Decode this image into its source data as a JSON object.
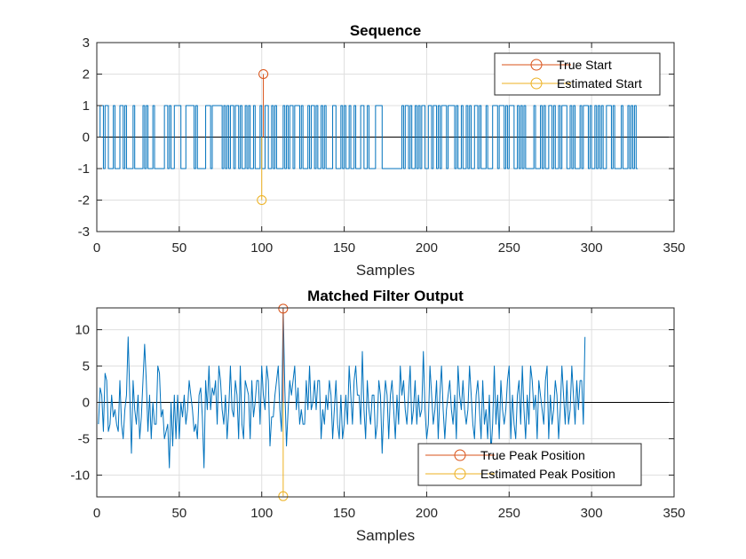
{
  "colors": {
    "sequence": "#0072BD",
    "true_marker": "#D95319",
    "estimated_marker": "#EDB120",
    "zero_line": "#000000",
    "grid": "#DFDFDF",
    "axes": "#262626"
  },
  "chart_data": [
    {
      "type": "line",
      "title": "Sequence",
      "xlabel": "Samples",
      "ylabel": "",
      "xlim": [
        0,
        350
      ],
      "ylim": [
        -3,
        3
      ],
      "xticks": [
        0,
        50,
        100,
        150,
        200,
        250,
        300,
        350
      ],
      "yticks": [
        -3,
        -2,
        -1,
        0,
        1,
        2,
        3
      ],
      "xtick_labels": [
        "0",
        "50",
        "100",
        "150",
        "200",
        "250",
        "300",
        "350"
      ],
      "ytick_labels": [
        "-3",
        "-2",
        "-1",
        "0",
        "1",
        "2",
        "3"
      ],
      "grid": true,
      "zero_line": true,
      "legend_position": "top-right",
      "series": [
        {
          "kind": "signal",
          "color": "#0072BD",
          "values": [
            0,
            1,
            1,
            -1,
            1,
            1,
            -1,
            -1,
            -1,
            1,
            -1,
            -1,
            -1,
            1,
            1,
            -1,
            1,
            -1,
            -1,
            -1,
            -1,
            1,
            -1,
            -1,
            -1,
            -1,
            -1,
            1,
            -1,
            1,
            -1,
            -1,
            -1,
            1,
            -1,
            -1,
            -1,
            -1,
            -1,
            -1,
            1,
            1,
            -1,
            1,
            -1,
            -1,
            1,
            1,
            1,
            1,
            -1,
            -1,
            -1,
            1,
            1,
            1,
            1,
            1,
            -1,
            1,
            -1,
            -1,
            -1,
            -1,
            -1,
            1,
            1,
            1,
            -1,
            1,
            1,
            1,
            1,
            1,
            1,
            -1,
            1,
            -1,
            1,
            -1,
            1,
            1,
            -1,
            1,
            1,
            -1,
            1,
            -1,
            -1,
            1,
            -1,
            1,
            -1,
            -1,
            1,
            -1,
            -1,
            -1,
            1,
            -1,
            -1,
            1,
            1,
            -1,
            -1,
            1,
            -1,
            1,
            -1,
            -1,
            -1,
            -1,
            1,
            -1,
            1,
            -1,
            1,
            1,
            -1,
            1,
            1,
            1,
            -1,
            1,
            -1,
            -1,
            -1,
            1,
            -1,
            1,
            1,
            -1,
            1,
            -1,
            -1,
            1,
            -1,
            1,
            -1,
            -1,
            -1,
            -1,
            1,
            1,
            -1,
            -1,
            -1,
            1,
            -1,
            1,
            -1,
            -1,
            1,
            -1,
            -1,
            1,
            -1,
            -1,
            -1,
            1,
            1,
            -1,
            -1,
            1,
            -1,
            -1,
            -1,
            -1,
            1,
            1,
            1,
            1,
            -1,
            -1,
            -1,
            -1,
            -1,
            -1,
            -1,
            -1,
            -1,
            -1,
            -1,
            -1,
            1,
            -1,
            1,
            1,
            -1,
            1,
            -1,
            -1,
            1,
            -1,
            1,
            -1,
            1,
            1,
            -1,
            -1,
            1,
            1,
            -1,
            1,
            1,
            -1,
            1,
            -1,
            1,
            1,
            1,
            -1,
            1,
            1,
            1,
            1,
            -1,
            1,
            -1,
            -1,
            1,
            -1,
            -1,
            1,
            -1,
            1,
            -1,
            -1,
            1,
            1,
            -1,
            1,
            -1,
            -1,
            -1,
            1,
            -1,
            -1,
            -1,
            1,
            1,
            1,
            -1,
            1,
            1,
            1,
            -1,
            1,
            -1,
            1,
            1,
            1,
            -1,
            -1,
            1,
            -1,
            1,
            -1,
            1,
            -1,
            -1,
            -1,
            -1,
            -1,
            1,
            -1,
            -1,
            -1,
            1,
            -1,
            1,
            -1,
            -1,
            1,
            1,
            -1,
            1,
            -1,
            -1,
            1,
            -1,
            1,
            1,
            1,
            -1,
            -1,
            1,
            -1,
            1,
            -1,
            -1,
            -1,
            1,
            -1,
            1,
            1,
            1,
            -1,
            1,
            -1,
            -1,
            1,
            -1,
            1,
            -1,
            1,
            -1,
            -1,
            1,
            1,
            1,
            -1,
            1,
            -1,
            -1,
            -1,
            -1,
            1,
            -1,
            -1,
            -1,
            1,
            -1,
            1,
            -1,
            1,
            -1,
            -1
          ]
        },
        {
          "kind": "stem",
          "name": "True Start",
          "color": "#D95319",
          "x": 101,
          "y": 2
        },
        {
          "kind": "stem",
          "name": "Estimated Start",
          "color": "#EDB120",
          "x": 100,
          "y": -2
        }
      ]
    },
    {
      "type": "line",
      "title": "Matched Filter Output",
      "xlabel": "Samples",
      "ylabel": "",
      "xlim": [
        0,
        350
      ],
      "ylim": [
        -13,
        13
      ],
      "xticks": [
        0,
        50,
        100,
        150,
        200,
        250,
        300,
        350
      ],
      "yticks": [
        -10,
        -5,
        0,
        5,
        10
      ],
      "xtick_labels": [
        "0",
        "50",
        "100",
        "150",
        "200",
        "250",
        "300",
        "350"
      ],
      "ytick_labels": [
        "-10",
        "-5",
        "0",
        "5",
        "10"
      ],
      "grid": true,
      "zero_line": true,
      "legend_position": "bottom-right",
      "series": [
        {
          "kind": "signal",
          "color": "#0072BD",
          "values": [
            -3,
            2,
            1,
            -4,
            4,
            3,
            -4,
            -3,
            1,
            -2,
            -1,
            -3,
            -4,
            3,
            -3,
            -5,
            -1,
            1,
            9,
            1,
            -7,
            3,
            -1,
            -3,
            1,
            -5,
            -2,
            3,
            8,
            3,
            -4,
            1,
            -5,
            0,
            -3,
            -3,
            5,
            4,
            -2,
            -1,
            -5,
            -4,
            -3,
            -9,
            0,
            -6,
            1,
            -5,
            1,
            -5,
            0,
            -2,
            1,
            -3,
            -1,
            3,
            1,
            -1,
            -4,
            -3,
            -5,
            1,
            2,
            -2,
            -9,
            3,
            -1,
            5,
            -1,
            2,
            1,
            3,
            -3,
            5,
            3,
            -1,
            -3,
            1,
            -5,
            -1,
            5,
            -1,
            -2,
            3,
            1,
            -5,
            5,
            -3,
            -5,
            3,
            2,
            1,
            -5,
            3,
            -2,
            0,
            3,
            3,
            -3,
            5,
            1,
            -1,
            5,
            3,
            -6,
            -2,
            -2,
            1,
            3,
            5,
            -1,
            -4,
            13,
            2,
            -6,
            -1,
            3,
            1,
            3,
            5,
            -1,
            2,
            -3,
            -1,
            -3,
            -3,
            3,
            -1,
            5,
            -1,
            0,
            3,
            -1,
            3,
            3,
            -5,
            -1,
            -3,
            1,
            -1,
            3,
            1,
            -5,
            -1,
            3,
            -3,
            -5,
            1,
            -5,
            -3,
            1,
            -3,
            5,
            1,
            -3,
            3,
            5,
            1,
            1,
            -3,
            7,
            -1,
            -5,
            3,
            -1,
            -3,
            1,
            1,
            -5,
            -3,
            3,
            1,
            -7,
            -1,
            3,
            1,
            -5,
            1,
            3,
            -1,
            -5,
            1,
            -3,
            5,
            1,
            3,
            -1,
            -3,
            1,
            5,
            -3,
            -1,
            3,
            -3,
            1,
            -2,
            -1,
            7,
            -1,
            -5,
            -3,
            5,
            1,
            -3,
            -1,
            3,
            -5,
            1,
            5,
            -1,
            -5,
            -1,
            1,
            3,
            -1,
            -3,
            1,
            -5,
            5,
            1,
            -1,
            3,
            -1,
            -3,
            -1,
            5,
            1,
            -3,
            -5,
            1,
            3,
            -1,
            -5,
            3,
            -3,
            -1,
            -5,
            1,
            -7,
            -3,
            5,
            -3,
            1,
            -5,
            3,
            -1,
            -3,
            -1,
            3,
            5,
            -5,
            1,
            -3,
            -5,
            1,
            3,
            -3,
            5,
            -1,
            -5,
            1,
            -3,
            5,
            3,
            -1,
            1,
            -5,
            3,
            1,
            -1,
            -3,
            3,
            5,
            -5,
            1,
            -3,
            -1,
            3,
            1,
            -5,
            -1,
            5,
            1,
            -3,
            3,
            -3,
            -1,
            5,
            1,
            -3,
            3,
            -1,
            3,
            3,
            -3,
            9
          ]
        },
        {
          "kind": "stem",
          "name": "True Peak Position",
          "color": "#D95319",
          "x": 113,
          "y": 12.9
        },
        {
          "kind": "stem",
          "name": "Estimated Peak Position",
          "color": "#EDB120",
          "x": 113,
          "y": -12.9
        }
      ]
    }
  ]
}
